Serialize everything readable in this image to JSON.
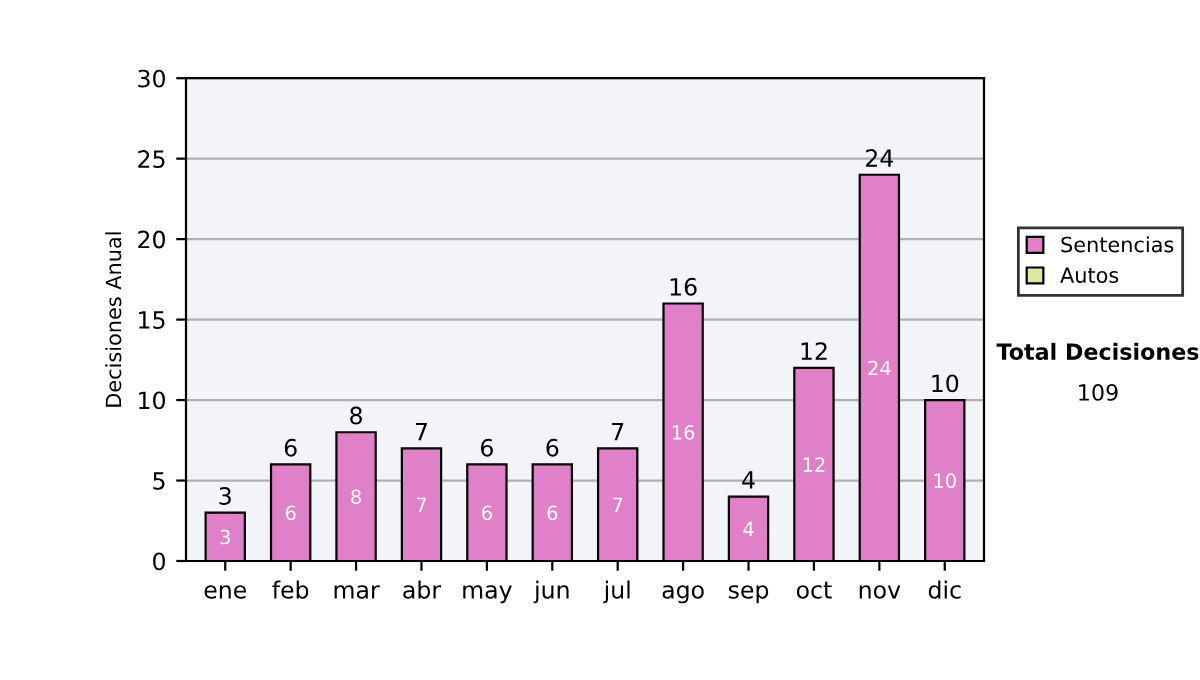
{
  "chart_data": {
    "type": "bar",
    "stacked": true,
    "ylabel": "Decisiones Anual",
    "categories": [
      "ene",
      "feb",
      "mar",
      "abr",
      "may",
      "jun",
      "jul",
      "ago",
      "sep",
      "oct",
      "nov",
      "dic"
    ],
    "series": [
      {
        "name": "Sentencias",
        "color": "#e080c8",
        "values": [
          3,
          6,
          8,
          7,
          6,
          6,
          7,
          16,
          4,
          12,
          24,
          10
        ]
      },
      {
        "name": "Autos",
        "color": "#e0e8a0",
        "values": [
          null,
          null,
          null,
          null,
          null,
          null,
          null,
          null,
          null,
          null,
          null,
          null
        ]
      }
    ],
    "data_labels": true,
    "totals": [
      "3",
      "6",
      "8",
      "7",
      "6",
      "6",
      "7",
      "16",
      "4",
      "12",
      "24",
      "10"
    ],
    "ylim": [
      0,
      30
    ],
    "yticks": [
      0,
      5,
      10,
      15,
      20,
      25,
      30
    ],
    "grid": "y",
    "legend": "right",
    "annotations": [
      "Total Decisiones",
      "109"
    ]
  }
}
